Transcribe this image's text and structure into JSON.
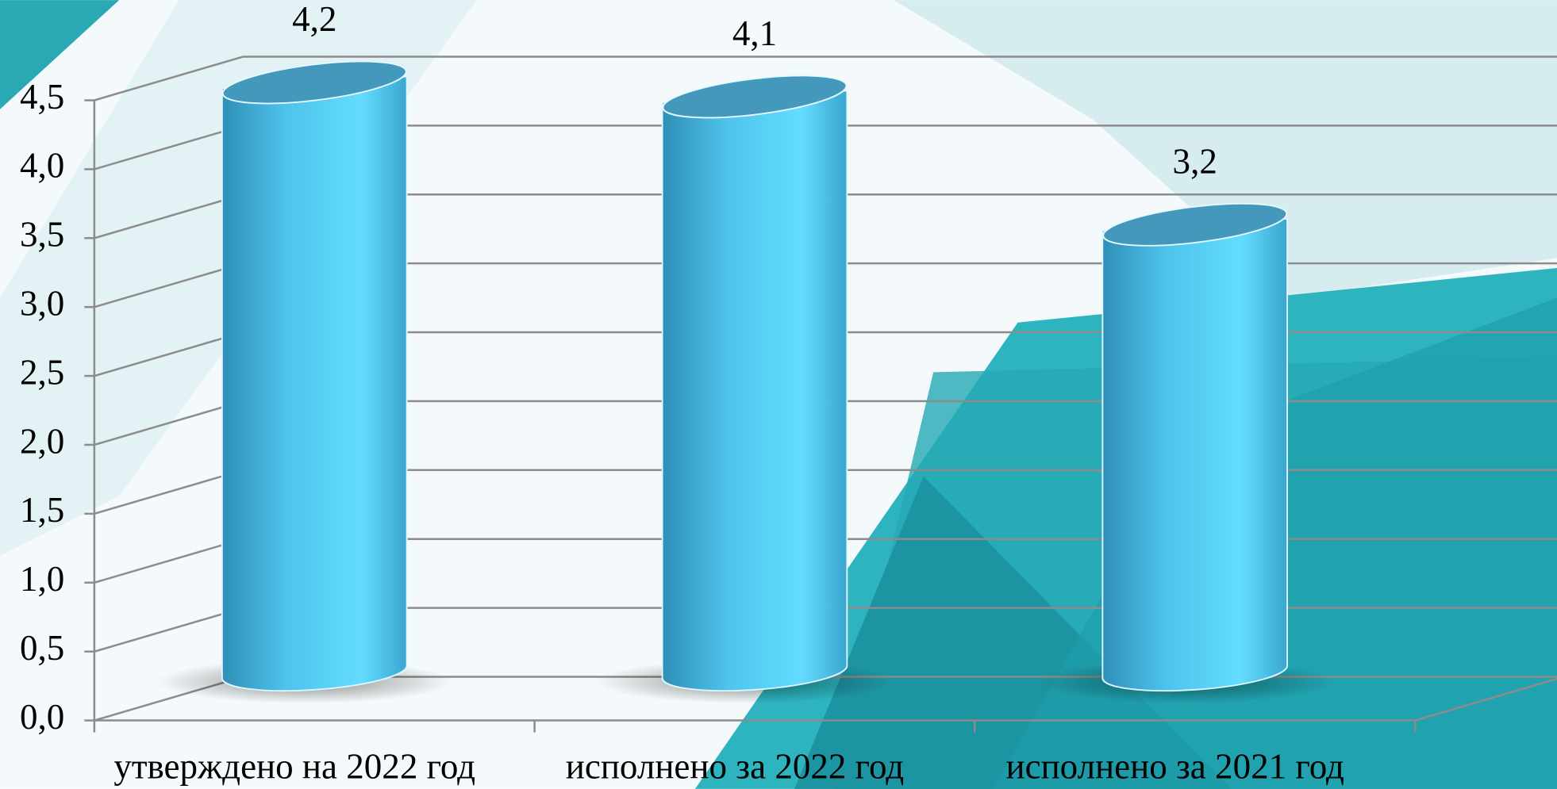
{
  "chart_data": {
    "type": "cylinder-bar",
    "categories": [
      "утверждено на 2022 год",
      "исполнено за 2022 год",
      "исполнено за 2021 год"
    ],
    "values": [
      4.2,
      4.1,
      3.2
    ],
    "value_labels": [
      "4,2",
      "4,1",
      "3,2"
    ],
    "color": "#4fc6ea",
    "ylim": [
      0,
      4.5
    ],
    "yticks": [
      {
        "value": 0,
        "label": "0,0"
      },
      {
        "value": 0.5,
        "label": "0,5"
      },
      {
        "value": 1,
        "label": "1,0"
      },
      {
        "value": 1.5,
        "label": "1,5"
      },
      {
        "value": 2,
        "label": "2,0"
      },
      {
        "value": 2.5,
        "label": "2,5"
      },
      {
        "value": 3,
        "label": "3,0"
      },
      {
        "value": 3.5,
        "label": "3,5"
      },
      {
        "value": 4,
        "label": "4,0"
      },
      {
        "value": 4.5,
        "label": "4,5"
      }
    ],
    "grid": true
  }
}
